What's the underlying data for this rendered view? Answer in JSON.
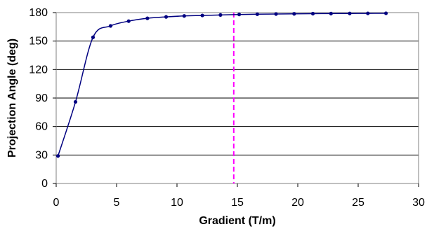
{
  "chart_data": {
    "type": "line",
    "title": "",
    "xlabel": "Gradient (T/m)",
    "ylabel": "Projection Angle (deg)",
    "xlim": [
      0,
      30
    ],
    "ylim": [
      0,
      180
    ],
    "xticks": [
      0,
      5,
      10,
      15,
      20,
      25,
      30
    ],
    "yticks": [
      0,
      30,
      60,
      90,
      120,
      150,
      180
    ],
    "grid": "horizontal major gridlines",
    "legend": "none",
    "series": [
      {
        "x": [
          0.15,
          1.6,
          3.05,
          4.5,
          6.0,
          7.55,
          9.1,
          10.6,
          12.1,
          13.6,
          15.15,
          16.65,
          18.2,
          19.7,
          21.25,
          22.75,
          24.3,
          25.8,
          27.3
        ],
        "y": [
          29,
          86,
          154,
          166,
          171,
          174,
          175.5,
          176.5,
          177,
          177.5,
          178,
          178.3,
          178.5,
          178.7,
          178.9,
          179,
          179.1,
          179.2,
          179.3
        ],
        "color": "#000080"
      }
    ],
    "annotations": [
      {
        "type": "vertical-dashed-line",
        "x": 14.7,
        "color": "#ff00ff"
      }
    ]
  }
}
